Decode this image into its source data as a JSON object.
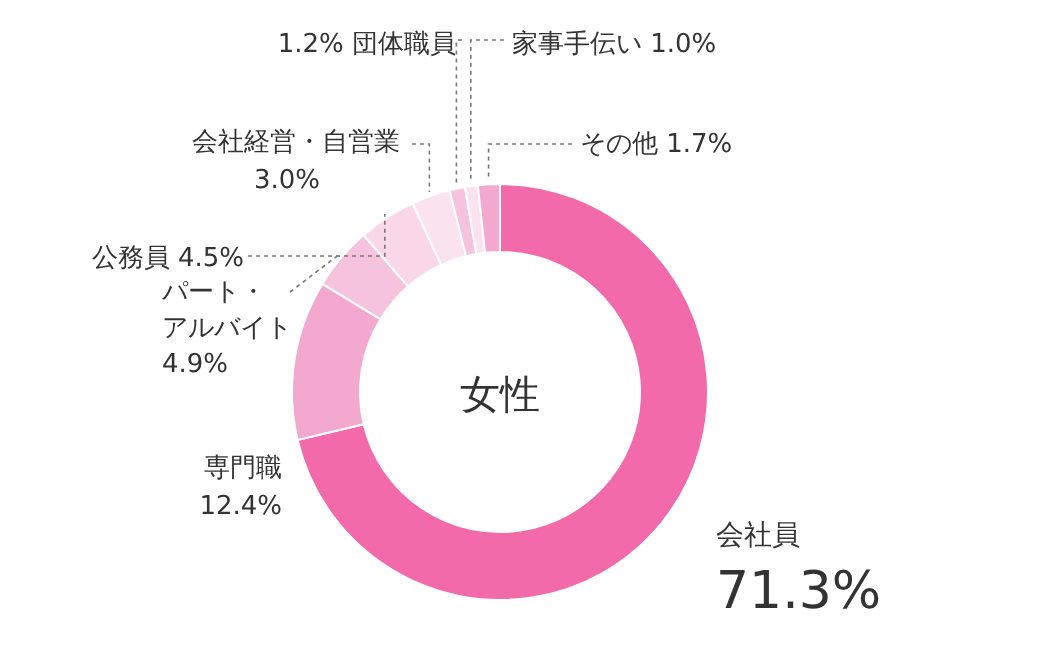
{
  "chart_data": {
    "type": "donut",
    "title": "女性",
    "categories": [
      "会社員",
      "専門職",
      "パート・アルバイト",
      "公務員",
      "会社経営・自営業",
      "団体職員",
      "家事手伝い",
      "その他"
    ],
    "values": [
      71.3,
      12.4,
      4.9,
      4.5,
      3.0,
      1.2,
      1.0,
      1.7
    ],
    "value_labels": [
      "71.3%",
      "12.4%",
      "4.9%",
      "4.5%",
      "3.0%",
      "1.2%",
      "1.0%",
      "1.7%"
    ],
    "colors": [
      "#f26aa9",
      "#f3a9cf",
      "#f6c3de",
      "#f9d7e9",
      "#fbe2ef",
      "#f6c3de",
      "#fbe2ef",
      "#f3a9cf"
    ]
  }
}
